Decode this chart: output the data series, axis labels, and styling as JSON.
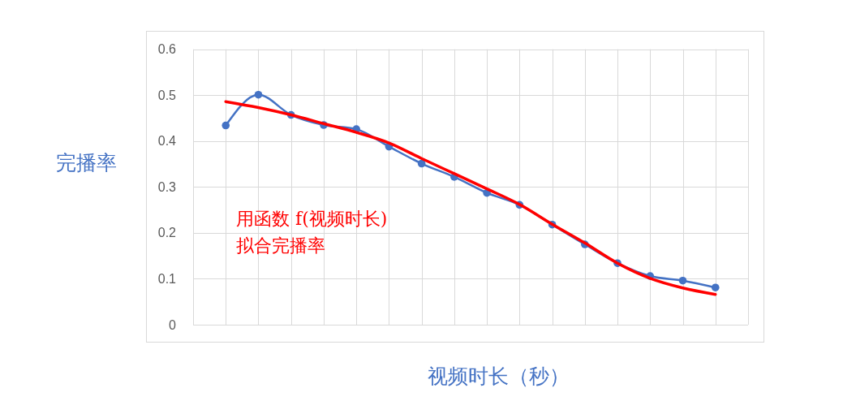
{
  "chart_data": {
    "type": "line",
    "categories": [
      null,
      null,
      null,
      null,
      null,
      null,
      null,
      null,
      null,
      null,
      null,
      null,
      null,
      null,
      null,
      null
    ],
    "series": [
      {
        "color": "#4472c4",
        "values": [
          0.434,
          0.501,
          0.457,
          0.435,
          0.426,
          0.388,
          0.351,
          0.322,
          0.287,
          0.261,
          0.218,
          0.175,
          0.134,
          0.106,
          0.096,
          0.081
        ]
      },
      {
        "color": "#ff0000",
        "marker": "none",
        "values": [
          0.486,
          0.473,
          0.457,
          0.438,
          0.419,
          0.396,
          0.362,
          0.329,
          0.296,
          0.262,
          0.219,
          0.178,
          0.134,
          0.101,
          0.08,
          0.066
        ]
      }
    ],
    "ylim": [
      0,
      0.6
    ],
    "yticks": [
      0,
      0.1,
      0.2,
      0.3,
      0.4,
      0.5,
      0.6
    ],
    "ylabel": "完播率",
    "xlabel": "视频时长（秒）",
    "annotations": [
      "用函数 f(视频时长)\n拟合完播率"
    ],
    "grid": true,
    "tick_labels": "y",
    "marker": "circle"
  }
}
